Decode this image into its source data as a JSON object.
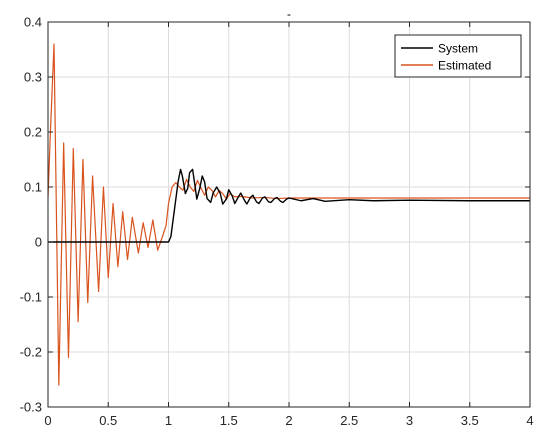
{
  "chart_data": {
    "type": "line",
    "title": "-",
    "xlabel": "",
    "ylabel": "",
    "xlim": [
      0,
      4
    ],
    "ylim": [
      -0.3,
      0.4
    ],
    "xticks": [
      0,
      0.5,
      1,
      1.5,
      2,
      2.5,
      3,
      3.5,
      4
    ],
    "xtick_labels": [
      "0",
      "0.5",
      "1",
      "1.5",
      "2",
      "2.5",
      "3",
      "3.5",
      "4"
    ],
    "yticks": [
      -0.3,
      -0.2,
      -0.1,
      0,
      0.1,
      0.2,
      0.3,
      0.4
    ],
    "ytick_labels": [
      "-0.3",
      "-0.2",
      "-0.1",
      "0",
      "0.1",
      "0.2",
      "0.3",
      "0.4"
    ],
    "grid": true,
    "legend_position": "top-right",
    "series": [
      {
        "name": "System",
        "color": "#000000",
        "x": [
          0,
          1.0,
          1.02,
          1.05,
          1.08,
          1.1,
          1.115,
          1.14,
          1.16,
          1.175,
          1.2,
          1.22,
          1.235,
          1.26,
          1.28,
          1.3,
          1.32,
          1.35,
          1.37,
          1.4,
          1.43,
          1.45,
          1.48,
          1.5,
          1.53,
          1.55,
          1.58,
          1.6,
          1.63,
          1.65,
          1.68,
          1.7,
          1.73,
          1.75,
          1.78,
          1.8,
          1.83,
          1.85,
          1.88,
          1.9,
          1.93,
          1.95,
          1.98,
          2.0,
          2.1,
          2.2,
          2.3,
          2.5,
          2.7,
          3.0,
          3.5,
          4.0
        ],
        "y": [
          0,
          0,
          0.01,
          0.06,
          0.11,
          0.132,
          0.12,
          0.088,
          0.098,
          0.126,
          0.132,
          0.102,
          0.078,
          0.098,
          0.12,
          0.109,
          0.079,
          0.072,
          0.089,
          0.1,
          0.088,
          0.069,
          0.078,
          0.095,
          0.083,
          0.07,
          0.082,
          0.089,
          0.076,
          0.069,
          0.081,
          0.085,
          0.073,
          0.07,
          0.08,
          0.082,
          0.073,
          0.072,
          0.079,
          0.081,
          0.074,
          0.072,
          0.078,
          0.08,
          0.075,
          0.079,
          0.074,
          0.077,
          0.075,
          0.076,
          0.075,
          0.075
        ]
      },
      {
        "name": "Estimated",
        "color": "#d9531e",
        "x": [
          0,
          0.02,
          0.05,
          0.09,
          0.13,
          0.17,
          0.21,
          0.25,
          0.29,
          0.33,
          0.37,
          0.42,
          0.46,
          0.5,
          0.54,
          0.58,
          0.62,
          0.66,
          0.7,
          0.75,
          0.79,
          0.83,
          0.87,
          0.91,
          0.95,
          0.98,
          1.0,
          1.03,
          1.06,
          1.09,
          1.12,
          1.15,
          1.18,
          1.21,
          1.24,
          1.27,
          1.3,
          1.33,
          1.36,
          1.39,
          1.42,
          1.45,
          1.48,
          1.51,
          1.55,
          1.6,
          1.7,
          1.8,
          1.9,
          2.0,
          2.2,
          2.5,
          3.0,
          3.5,
          4.0
        ],
        "y": [
          0.08,
          0.2,
          0.36,
          -0.26,
          0.18,
          -0.21,
          0.17,
          -0.145,
          0.15,
          -0.11,
          0.12,
          -0.09,
          0.1,
          -0.065,
          0.07,
          -0.045,
          0.055,
          -0.032,
          0.045,
          -0.02,
          0.035,
          -0.01,
          0.04,
          -0.015,
          0.01,
          0.03,
          0.07,
          0.1,
          0.108,
          0.1,
          0.094,
          0.114,
          0.1,
          0.092,
          0.112,
          0.098,
          0.085,
          0.1,
          0.094,
          0.082,
          0.094,
          0.088,
          0.078,
          0.088,
          0.082,
          0.083,
          0.08,
          0.081,
          0.079,
          0.08,
          0.08,
          0.08,
          0.08,
          0.08,
          0.08
        ]
      }
    ]
  }
}
